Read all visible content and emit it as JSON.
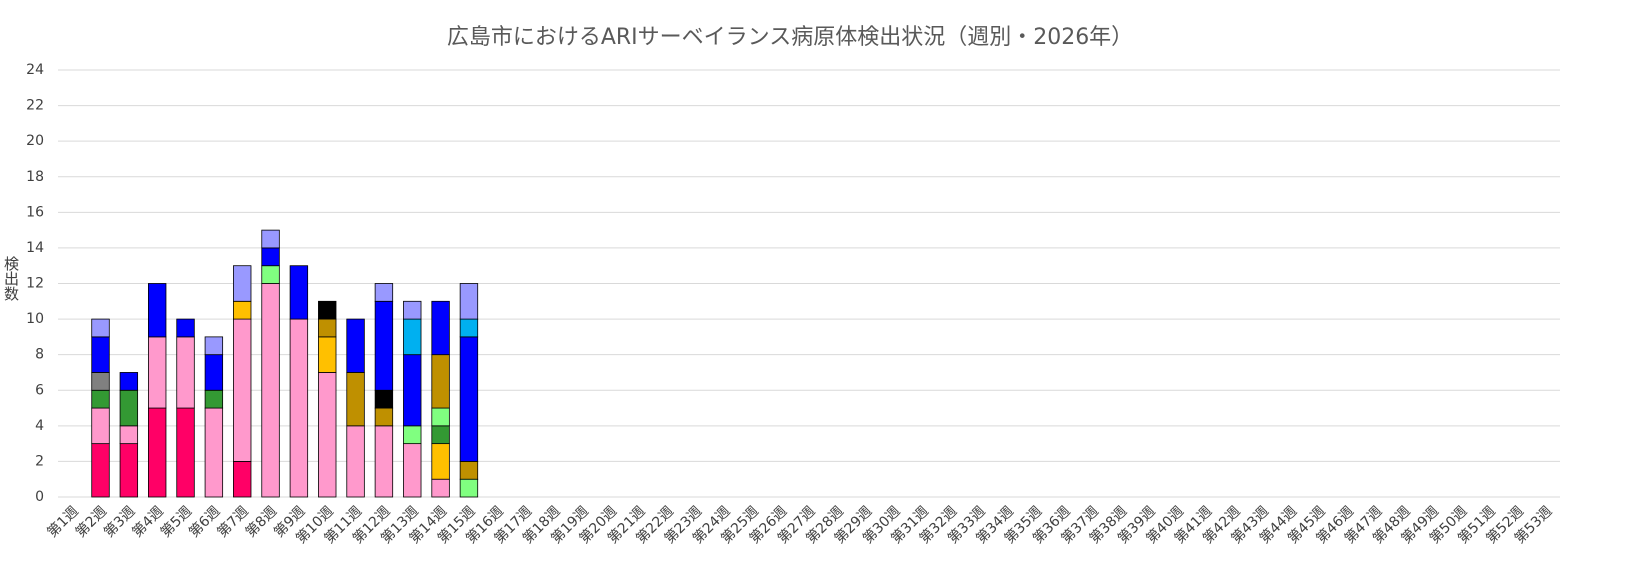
{
  "chart_data": {
    "type": "stacked_bar",
    "title": "広島市におけるARIサーベイランス病原体検出状況（週別・2026年）",
    "y_label": "検出数",
    "categories": [
      "第1週",
      "第2週",
      "第3週",
      "第4週",
      "第5週",
      "第6週",
      "第7週",
      "第8週",
      "第9週",
      "第10週",
      "第11週",
      "第12週",
      "第13週",
      "第14週",
      "第15週",
      "第16週",
      "第17週",
      "第18週",
      "第19週",
      "第20週",
      "第21週",
      "第22週",
      "第23週",
      "第24週",
      "第25週",
      "第26週",
      "第27週",
      "第28週",
      "第29週",
      "第30週",
      "第31週",
      "第32週",
      "第33週",
      "第34週",
      "第35週",
      "第36週",
      "第37週",
      "第38週",
      "第39週",
      "第40週",
      "第41週",
      "第42週",
      "第43週",
      "第44週",
      "第45週",
      "第46週",
      "第47週",
      "第48週",
      "第49週",
      "第50週",
      "第51週",
      "第52週",
      "第53週"
    ],
    "series": [
      {
        "color": "#ff0066",
        "values": [
          0,
          3,
          3,
          5,
          5,
          0,
          2,
          0,
          0,
          0,
          0,
          0,
          0,
          0,
          0,
          null,
          null,
          null,
          null,
          null,
          null,
          null,
          null,
          null,
          null,
          null,
          null,
          null,
          null,
          null,
          null,
          null,
          null,
          null,
          null,
          null,
          null,
          null,
          null,
          null,
          null,
          null,
          null,
          null,
          null,
          null,
          null,
          null,
          null,
          null,
          null,
          null,
          null
        ]
      },
      {
        "color": "#ff99cc",
        "values": [
          0,
          2,
          1,
          4,
          4,
          5,
          8,
          12,
          10,
          7,
          4,
          4,
          3,
          1,
          0,
          null,
          null,
          null,
          null,
          null,
          null,
          null,
          null,
          null,
          null,
          null,
          null,
          null,
          null,
          null,
          null,
          null,
          null,
          null,
          null,
          null,
          null,
          null,
          null,
          null,
          null,
          null,
          null,
          null,
          null,
          null,
          null,
          null,
          null,
          null,
          null,
          null,
          null
        ]
      },
      {
        "color": "#ffc000",
        "values": [
          0,
          0,
          0,
          0,
          0,
          0,
          1,
          0,
          0,
          2,
          0,
          0,
          0,
          2,
          0,
          null,
          null,
          null,
          null,
          null,
          null,
          null,
          null,
          null,
          null,
          null,
          null,
          null,
          null,
          null,
          null,
          null,
          null,
          null,
          null,
          null,
          null,
          null,
          null,
          null,
          null,
          null,
          null,
          null,
          null,
          null,
          null,
          null,
          null,
          null,
          null,
          null,
          null
        ]
      },
      {
        "color": "#339933",
        "values": [
          0,
          1,
          2,
          0,
          0,
          1,
          0,
          0,
          0,
          0,
          0,
          0,
          0,
          1,
          0,
          null,
          null,
          null,
          null,
          null,
          null,
          null,
          null,
          null,
          null,
          null,
          null,
          null,
          null,
          null,
          null,
          null,
          null,
          null,
          null,
          null,
          null,
          null,
          null,
          null,
          null,
          null,
          null,
          null,
          null,
          null,
          null,
          null,
          null,
          null,
          null,
          null,
          null
        ]
      },
      {
        "color": "#808080",
        "values": [
          0,
          1,
          0,
          0,
          0,
          0,
          0,
          0,
          0,
          0,
          0,
          0,
          0,
          0,
          0,
          null,
          null,
          null,
          null,
          null,
          null,
          null,
          null,
          null,
          null,
          null,
          null,
          null,
          null,
          null,
          null,
          null,
          null,
          null,
          null,
          null,
          null,
          null,
          null,
          null,
          null,
          null,
          null,
          null,
          null,
          null,
          null,
          null,
          null,
          null,
          null,
          null,
          null
        ]
      },
      {
        "color": "#80ff80",
        "values": [
          0,
          0,
          0,
          0,
          0,
          0,
          0,
          1,
          0,
          0,
          0,
          0,
          1,
          1,
          1,
          null,
          null,
          null,
          null,
          null,
          null,
          null,
          null,
          null,
          null,
          null,
          null,
          null,
          null,
          null,
          null,
          null,
          null,
          null,
          null,
          null,
          null,
          null,
          null,
          null,
          null,
          null,
          null,
          null,
          null,
          null,
          null,
          null,
          null,
          null,
          null,
          null,
          null
        ]
      },
      {
        "color": "#bf9000",
        "values": [
          0,
          0,
          0,
          0,
          0,
          0,
          0,
          0,
          0,
          1,
          3,
          1,
          0,
          3,
          1,
          null,
          null,
          null,
          null,
          null,
          null,
          null,
          null,
          null,
          null,
          null,
          null,
          null,
          null,
          null,
          null,
          null,
          null,
          null,
          null,
          null,
          null,
          null,
          null,
          null,
          null,
          null,
          null,
          null,
          null,
          null,
          null,
          null,
          null,
          null,
          null,
          null,
          null
        ]
      },
      {
        "color": "#000000",
        "values": [
          0,
          0,
          0,
          0,
          0,
          0,
          0,
          0,
          0,
          1,
          0,
          1,
          0,
          0,
          0,
          null,
          null,
          null,
          null,
          null,
          null,
          null,
          null,
          null,
          null,
          null,
          null,
          null,
          null,
          null,
          null,
          null,
          null,
          null,
          null,
          null,
          null,
          null,
          null,
          null,
          null,
          null,
          null,
          null,
          null,
          null,
          null,
          null,
          null,
          null,
          null,
          null,
          null
        ]
      },
      {
        "color": "#0000ff",
        "values": [
          0,
          2,
          1,
          3,
          1,
          2,
          0,
          1,
          3,
          0,
          3,
          5,
          4,
          3,
          7,
          null,
          null,
          null,
          null,
          null,
          null,
          null,
          null,
          null,
          null,
          null,
          null,
          null,
          null,
          null,
          null,
          null,
          null,
          null,
          null,
          null,
          null,
          null,
          null,
          null,
          null,
          null,
          null,
          null,
          null,
          null,
          null,
          null,
          null,
          null,
          null,
          null,
          null
        ]
      },
      {
        "color": "#00b0f0",
        "values": [
          0,
          0,
          0,
          0,
          0,
          0,
          0,
          0,
          0,
          0,
          0,
          0,
          2,
          0,
          1,
          null,
          null,
          null,
          null,
          null,
          null,
          null,
          null,
          null,
          null,
          null,
          null,
          null,
          null,
          null,
          null,
          null,
          null,
          null,
          null,
          null,
          null,
          null,
          null,
          null,
          null,
          null,
          null,
          null,
          null,
          null,
          null,
          null,
          null,
          null,
          null,
          null,
          null
        ]
      },
      {
        "color": "#9999ff",
        "values": [
          0,
          1,
          0,
          0,
          0,
          1,
          2,
          1,
          0,
          0,
          0,
          1,
          1,
          0,
          2,
          null,
          null,
          null,
          null,
          null,
          null,
          null,
          null,
          null,
          null,
          null,
          null,
          null,
          null,
          null,
          null,
          null,
          null,
          null,
          null,
          null,
          null,
          null,
          null,
          null,
          null,
          null,
          null,
          null,
          null,
          null,
          null,
          null,
          null,
          null,
          null,
          null,
          null
        ]
      }
    ],
    "ylim": [
      0,
      24
    ],
    "yticks": [
      0,
      2,
      4,
      6,
      8,
      10,
      12,
      14,
      16,
      18,
      20,
      22,
      24
    ],
    "grid": true
  }
}
